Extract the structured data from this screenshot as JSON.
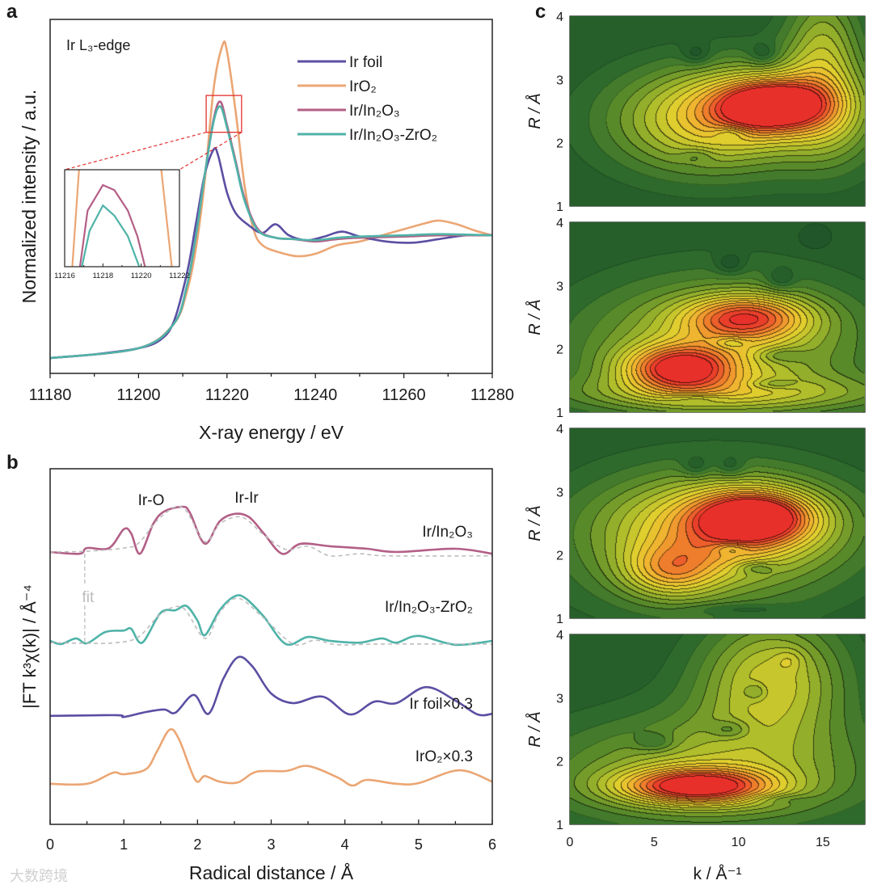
{
  "panel_labels": {
    "a": "a",
    "b": "b",
    "c": "c"
  },
  "watermark": "大数跨境",
  "chart_data": [
    {
      "id": "a",
      "type": "line",
      "title": "Ir L₃-edge",
      "xlabel": "X-ray energy / eV",
      "ylabel": "Normalized intensity / a.u.",
      "xlim": [
        11180,
        11280
      ],
      "ylim": [
        -0.125,
        2.76
      ],
      "xticks": [
        11180,
        11200,
        11220,
        11240,
        11260,
        11280
      ],
      "xminor": 10,
      "legend_position": "top-right",
      "series": [
        {
          "name": "Ir foil",
          "color": "#5a4fa3",
          "x": [
            11180,
            11190,
            11200,
            11205,
            11208,
            11211,
            11213,
            11215,
            11217,
            11218,
            11220,
            11222,
            11225,
            11228,
            11231,
            11234,
            11238,
            11242,
            11246,
            11250,
            11256,
            11262,
            11268,
            11274,
            11280
          ],
          "y": [
            0,
            0.03,
            0.08,
            0.15,
            0.3,
            0.7,
            1.1,
            1.5,
            1.7,
            1.65,
            1.35,
            1.18,
            1.08,
            1.02,
            1.09,
            1.0,
            0.96,
            0.99,
            1.03,
            0.99,
            0.95,
            0.94,
            0.97,
            1.0,
            1.0
          ]
        },
        {
          "name": "IrO₂",
          "color": "#eba674",
          "x": [
            11180,
            11200,
            11208,
            11211,
            11213,
            11215,
            11217,
            11219,
            11220,
            11222,
            11224,
            11226,
            11228,
            11232,
            11236,
            11240,
            11245,
            11250,
            11255,
            11260,
            11265,
            11268,
            11272,
            11276,
            11280
          ],
          "y": [
            0,
            0.08,
            0.28,
            0.55,
            0.9,
            1.45,
            2.2,
            2.55,
            2.5,
            2.0,
            1.4,
            1.05,
            0.92,
            0.86,
            0.83,
            0.85,
            0.92,
            0.95,
            1.0,
            1.05,
            1.1,
            1.12,
            1.09,
            1.04,
            1.0
          ]
        },
        {
          "name": "Ir/In₂O₃",
          "color": "#b35f86",
          "x": [
            11180,
            11200,
            11208,
            11211,
            11213,
            11215,
            11217,
            11218.5,
            11220,
            11222,
            11224,
            11227,
            11231,
            11235,
            11240,
            11245,
            11250,
            11260,
            11268,
            11280
          ],
          "y": [
            0,
            0.08,
            0.28,
            0.6,
            1.0,
            1.5,
            1.95,
            2.09,
            1.9,
            1.6,
            1.3,
            1.05,
            0.98,
            0.97,
            0.95,
            0.97,
            0.98,
            0.99,
            1.0,
            1.0
          ]
        },
        {
          "name": "Ir/In₂O₃-ZrO₂",
          "color": "#4fb3a8",
          "x": [
            11180,
            11200,
            11208,
            11211,
            11213,
            11215,
            11217,
            11218.5,
            11220,
            11222,
            11224,
            11227,
            11231,
            11235,
            11240,
            11245,
            11250,
            11260,
            11268,
            11280
          ],
          "y": [
            0,
            0.08,
            0.28,
            0.6,
            1.0,
            1.5,
            1.93,
            2.05,
            1.88,
            1.58,
            1.28,
            1.04,
            0.98,
            0.97,
            0.96,
            0.98,
            0.99,
            1.0,
            1.01,
            1.0
          ]
        }
      ],
      "inset": {
        "xlim": [
          11216,
          11222
        ],
        "ylim": [
          1.93,
          2.12
        ],
        "xticks": [
          11216,
          11218,
          11220,
          11222
        ],
        "series": [
          {
            "name": "IrO₂",
            "color": "#eba674",
            "x": [
              11216.4,
              11216.75
            ],
            "y": [
              1.93,
              2.12
            ]
          },
          {
            "name": "IrO₂",
            "color": "#eba674",
            "x": [
              11221.05,
              11221.6
            ],
            "y": [
              2.12,
              1.93
            ]
          },
          {
            "name": "Ir/In₂O₃",
            "color": "#b35f86",
            "x": [
              11216.8,
              11217.2,
              11218,
              11218.6,
              11219.3,
              11219.8,
              11220.2
            ],
            "y": [
              1.93,
              2.04,
              2.09,
              2.08,
              2.04,
              1.99,
              1.93
            ]
          },
          {
            "name": "Ir/In₂O₃-ZrO₂",
            "color": "#4fb3a8",
            "x": [
              11216.9,
              11217.3,
              11218,
              11218.6,
              11219.3,
              11219.9
            ],
            "y": [
              1.93,
              2.0,
              2.05,
              2.03,
              1.99,
              1.93
            ]
          }
        ]
      }
    },
    {
      "id": "b",
      "type": "line",
      "xlabel": "Radical distance / Å",
      "ylabel": "|FT k³χ(k)| / Å⁻⁴",
      "xlim": [
        0,
        6
      ],
      "ylim": [
        0,
        10
      ],
      "xticks": [
        0,
        1,
        2,
        3,
        4,
        5,
        6
      ],
      "xminor": 0.5,
      "annotations": [
        "Ir-O",
        "Ir-Ir",
        "fit"
      ],
      "series": [
        {
          "name": "Ir/In₂O₃",
          "color": "#b35f86",
          "x": [
            0,
            0.4,
            0.5,
            0.8,
            1.0,
            1.1,
            1.22,
            1.4,
            1.55,
            1.8,
            1.9,
            2.1,
            2.3,
            2.5,
            2.7,
            2.9,
            3.15,
            3.4,
            3.8,
            4.3,
            4.7,
            5.5,
            6.0
          ],
          "y": [
            7.66,
            7.61,
            7.77,
            7.77,
            8.3,
            8.18,
            7.61,
            8.45,
            8.8,
            8.93,
            8.75,
            7.89,
            8.52,
            8.73,
            8.64,
            8.18,
            7.61,
            7.89,
            7.82,
            7.75,
            7.66,
            7.75,
            7.61
          ]
        },
        {
          "name": "Ir/In₂O₃ fit",
          "dashed": true,
          "color": "#bdbdbd",
          "x": [
            0,
            0.5,
            1.0,
            1.2,
            1.5,
            1.8,
            2.1,
            2.3,
            2.6,
            2.9,
            3.2,
            3.5,
            3.8,
            4.2,
            4.6,
            6.0
          ],
          "y": [
            7.66,
            7.68,
            7.77,
            7.91,
            8.64,
            8.91,
            7.95,
            8.45,
            8.64,
            8.14,
            7.73,
            7.82,
            7.55,
            7.61,
            7.55,
            7.55
          ]
        },
        {
          "name": "Ir/In₂O₃-ZrO₂",
          "color": "#4fb3a8",
          "x": [
            0,
            0.15,
            0.35,
            0.5,
            0.75,
            1.0,
            1.1,
            1.25,
            1.5,
            1.7,
            1.85,
            2.0,
            2.1,
            2.3,
            2.5,
            2.65,
            2.9,
            3.2,
            3.5,
            3.8,
            4.2,
            4.5,
            4.7,
            5.0,
            5.5,
            6.0
          ],
          "y": [
            5.16,
            5.07,
            5.23,
            5.09,
            5.41,
            5.45,
            5.5,
            5.11,
            5.95,
            6.02,
            6.14,
            5.73,
            5.32,
            6.02,
            6.41,
            6.36,
            5.84,
            5.07,
            5.27,
            5.16,
            5.11,
            5.23,
            5.11,
            5.3,
            5.05,
            5.16
          ]
        },
        {
          "name": "Ir/In₂O₃-ZrO₂ fit",
          "dashed": true,
          "color": "#bdbdbd",
          "x": [
            0,
            0.5,
            0.9,
            1.2,
            1.5,
            1.8,
            2.1,
            2.3,
            2.55,
            2.9,
            3.3,
            3.6,
            3.9,
            4.5,
            6.0
          ],
          "y": [
            5.11,
            5.09,
            5.11,
            5.27,
            5.91,
            6.09,
            5.23,
            5.95,
            6.36,
            5.8,
            5.07,
            5.18,
            5.05,
            5.07,
            5.07
          ]
        },
        {
          "name": "Ir foil×0.3",
          "color": "#5a4fa3",
          "x": [
            0,
            0.9,
            1.0,
            1.3,
            1.55,
            1.7,
            1.95,
            2.15,
            2.35,
            2.55,
            2.75,
            3.0,
            3.3,
            3.7,
            4.07,
            4.4,
            4.7,
            5.1,
            5.5,
            5.8,
            6.0
          ],
          "y": [
            3.05,
            3.07,
            3.02,
            3.16,
            3.23,
            3.14,
            3.64,
            3.11,
            4.09,
            4.7,
            4.43,
            3.68,
            3.41,
            3.59,
            3.09,
            3.45,
            3.41,
            3.86,
            3.48,
            3.09,
            3.11
          ]
        },
        {
          "name": "IrO₂×0.3",
          "color": "#eba674",
          "x": [
            0,
            0.5,
            0.85,
            1.0,
            1.3,
            1.45,
            1.62,
            1.75,
            1.97,
            2.1,
            2.3,
            2.55,
            2.8,
            3.2,
            3.5,
            3.9,
            4.1,
            4.3,
            4.7,
            5.0,
            5.55,
            6.0
          ],
          "y": [
            1.14,
            1.14,
            1.45,
            1.41,
            1.55,
            2.05,
            2.66,
            2.39,
            1.25,
            1.36,
            1.2,
            1.18,
            1.48,
            1.5,
            1.64,
            1.32,
            1.09,
            1.25,
            1.14,
            1.16,
            1.52,
            1.2
          ]
        }
      ],
      "fit_marker_x": 0.47
    },
    {
      "id": "c",
      "type": "heatmap",
      "xlabel": "k / Å⁻¹",
      "ylabel": "R / Å",
      "xlim": [
        0,
        17.5
      ],
      "ylim": [
        1,
        4
      ],
      "xticks": [
        0,
        5,
        10,
        15
      ],
      "yticks": [
        1,
        2,
        3,
        4
      ],
      "maps": [
        {
          "name": "Ir foil",
          "peaks": [
            {
              "k": 12,
              "R": 2.6,
              "a": 0.75,
              "sk": 2.2,
              "sR": 0.28
            },
            {
              "k": 10,
              "R": 2.6,
              "a": 0.45,
              "sk": 4.5,
              "sR": 0.5
            },
            {
              "k": 8,
              "R": 2.1,
              "a": 0.25,
              "sk": 4,
              "sR": 0.5
            },
            {
              "k": 15,
              "R": 3.5,
              "a": 0.35,
              "sk": 1.6,
              "sR": 0.7
            },
            {
              "k": 15.5,
              "R": 2.3,
              "a": 0.2,
              "sk": 2,
              "sR": 0.6
            },
            {
              "k": 7.5,
              "R": 3.4,
              "a": -0.15,
              "sk": 0.6,
              "sR": 0.12
            },
            {
              "k": 11.5,
              "R": 3.4,
              "a": -0.15,
              "sk": 0.6,
              "sR": 0.12
            },
            {
              "k": 9.5,
              "R": 2.15,
              "a": -0.15,
              "sk": 0.7,
              "sR": 0.08
            },
            {
              "k": 7.5,
              "R": 1.8,
              "a": -0.1,
              "sk": 0.7,
              "sR": 0.08
            }
          ]
        },
        {
          "name": "Ir/In₂O₃",
          "peaks": [
            {
              "k": 6.5,
              "R": 1.7,
              "a": 0.7,
              "sk": 2.3,
              "sR": 0.25
            },
            {
              "k": 10.5,
              "R": 2.5,
              "a": 0.6,
              "sk": 2.6,
              "sR": 0.25
            },
            {
              "k": 9,
              "R": 2.0,
              "a": 0.4,
              "sk": 6,
              "sR": 0.75
            },
            {
              "k": 10,
              "R": 1.3,
              "a": 0.25,
              "sk": 8,
              "sR": 0.2
            },
            {
              "k": 9.5,
              "R": 3.35,
              "a": -0.15,
              "sk": 0.6,
              "sR": 0.12
            },
            {
              "k": 12.5,
              "R": 3.1,
              "a": -0.15,
              "sk": 0.6,
              "sR": 0.12
            },
            {
              "k": 14.5,
              "R": 3.75,
              "a": -0.15,
              "sk": 0.5,
              "sR": 0.1
            },
            {
              "k": 9.5,
              "R": 2.1,
              "a": -0.15,
              "sk": 0.7,
              "sR": 0.07
            },
            {
              "k": 12.5,
              "R": 1.9,
              "a": -0.15,
              "sk": 1,
              "sR": 0.08
            },
            {
              "k": 12,
              "R": 1.45,
              "a": -0.15,
              "sk": 1,
              "sR": 0.06
            },
            {
              "k": 7.5,
              "R": 1.22,
              "a": -0.12,
              "sk": 1.2,
              "sR": 0.05
            }
          ]
        },
        {
          "name": "Ir/In₂O₃-ZrO₂",
          "peaks": [
            {
              "k": 11,
              "R": 2.6,
              "a": 0.7,
              "sk": 2.3,
              "sR": 0.28
            },
            {
              "k": 9.5,
              "R": 2.5,
              "a": 0.4,
              "sk": 4.5,
              "sR": 0.5
            },
            {
              "k": 6,
              "R": 1.75,
              "a": 0.4,
              "sk": 2,
              "sR": 0.3
            },
            {
              "k": 8,
              "R": 2.2,
              "a": 0.3,
              "sk": 6,
              "sR": 0.8
            },
            {
              "k": 7.5,
              "R": 3.4,
              "a": -0.15,
              "sk": 0.6,
              "sR": 0.12
            },
            {
              "k": 9.5,
              "R": 3.4,
              "a": -0.15,
              "sk": 0.6,
              "sR": 0.12
            },
            {
              "k": 9.5,
              "R": 2.1,
              "a": -0.15,
              "sk": 0.7,
              "sR": 0.07
            },
            {
              "k": 11,
              "R": 1.8,
              "a": -0.15,
              "sk": 0.8,
              "sR": 0.07
            },
            {
              "k": 10,
              "R": 1.15,
              "a": -0.1,
              "sk": 2,
              "sR": 0.06
            }
          ]
        },
        {
          "name": "IrO₂",
          "peaks": [
            {
              "k": 7.5,
              "R": 1.6,
              "a": 0.75,
              "sk": 3.2,
              "sR": 0.2
            },
            {
              "k": 8,
              "R": 1.8,
              "a": 0.35,
              "sk": 7,
              "sR": 0.6
            },
            {
              "k": 12,
              "R": 3.3,
              "a": 0.45,
              "sk": 3,
              "sR": 0.7
            },
            {
              "k": 13,
              "R": 3.6,
              "a": 0.1,
              "sk": 0.6,
              "sR": 0.12
            },
            {
              "k": 5,
              "R": 2.3,
              "a": -0.15,
              "sk": 0.8,
              "sR": 0.1
            },
            {
              "k": 9.5,
              "R": 2.5,
              "a": -0.15,
              "sk": 0.8,
              "sR": 0.1
            },
            {
              "k": 11,
              "R": 3.1,
              "a": -0.15,
              "sk": 0.5,
              "sR": 0.1
            },
            {
              "k": 12.5,
              "R": 1.4,
              "a": -0.1,
              "sk": 1.2,
              "sR": 0.06
            }
          ]
        }
      ]
    }
  ]
}
